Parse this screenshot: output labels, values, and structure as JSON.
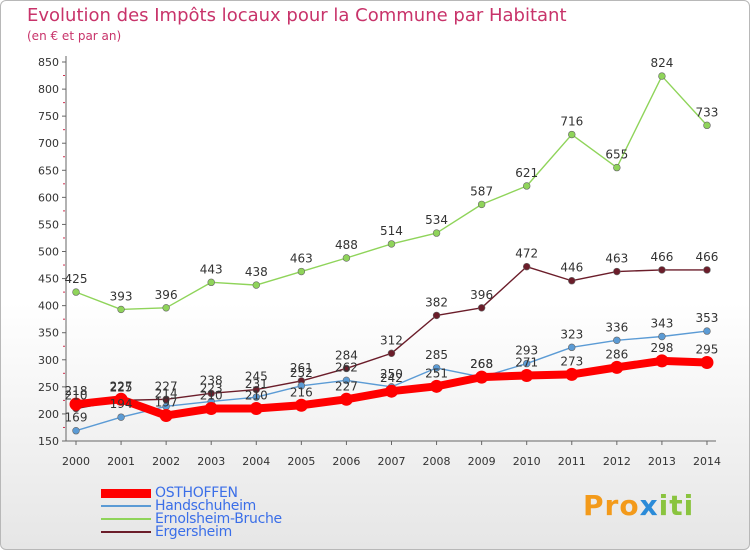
{
  "header": {
    "title": "Evolution des Impôts locaux pour la Commune par Habitant",
    "subtitle": "(en € et par an)"
  },
  "logo": {
    "p1": "Pro",
    "p2": "x",
    "p3": "iti"
  },
  "chart_data": {
    "type": "line",
    "x": [
      "2000",
      "2001",
      "2002",
      "2003",
      "2004",
      "2005",
      "2006",
      "2007",
      "2008",
      "2009",
      "2010",
      "2011",
      "2012",
      "2013",
      "2014"
    ],
    "ylim": [
      150,
      850
    ],
    "yticks": [
      150,
      200,
      250,
      300,
      350,
      400,
      450,
      500,
      550,
      600,
      650,
      700,
      750,
      800,
      850
    ],
    "grid": false,
    "legend_position": "bottom-left",
    "series": [
      {
        "name": "OSTHOFFEN",
        "color": "#ff0000",
        "values": [
          218,
          227,
          197,
          210,
          210,
          216,
          227,
          242,
          251,
          268,
          271,
          273,
          286,
          298,
          295
        ]
      },
      {
        "name": "Handschuheim",
        "color": "#5b9bd5",
        "values": [
          169,
          194,
          214,
          223,
          231,
          252,
          262,
          250,
          285,
          268,
          293,
          323,
          336,
          343,
          353
        ]
      },
      {
        "name": "Ernolsheim-Bruche",
        "color": "#8fd45a",
        "values": [
          425,
          393,
          396,
          443,
          438,
          463,
          488,
          514,
          534,
          587,
          621,
          716,
          655,
          824,
          733
        ]
      },
      {
        "name": "Ergersheim",
        "color": "#6b1d2a",
        "values": [
          210,
          225,
          227,
          238,
          245,
          261,
          284,
          312,
          382,
          396,
          472,
          446,
          463,
          466,
          466
        ]
      }
    ],
    "labels": [
      {
        "series": 0,
        "values": [
          "218",
          "227",
          "197",
          "210",
          "210",
          "216",
          "227",
          "242",
          "251",
          "268",
          "271",
          "273",
          "286",
          "298",
          "295"
        ]
      },
      {
        "series": 1,
        "values": [
          "169",
          "194",
          "214",
          "223",
          "231",
          "252",
          "262",
          "250",
          "285",
          "268",
          "293",
          "323",
          "336",
          "343",
          "353"
        ]
      },
      {
        "series": 2,
        "values": [
          "425",
          "393",
          "396",
          "443",
          "438",
          "463",
          "488",
          "514",
          "534",
          "587",
          "621",
          "716",
          "655",
          "824",
          "733"
        ]
      },
      {
        "series": 3,
        "values": [
          "210",
          "225",
          "227",
          "238",
          "245",
          "261",
          "284",
          "312",
          "382",
          "396",
          "472",
          "446",
          "463",
          "466",
          "466"
        ]
      }
    ]
  }
}
